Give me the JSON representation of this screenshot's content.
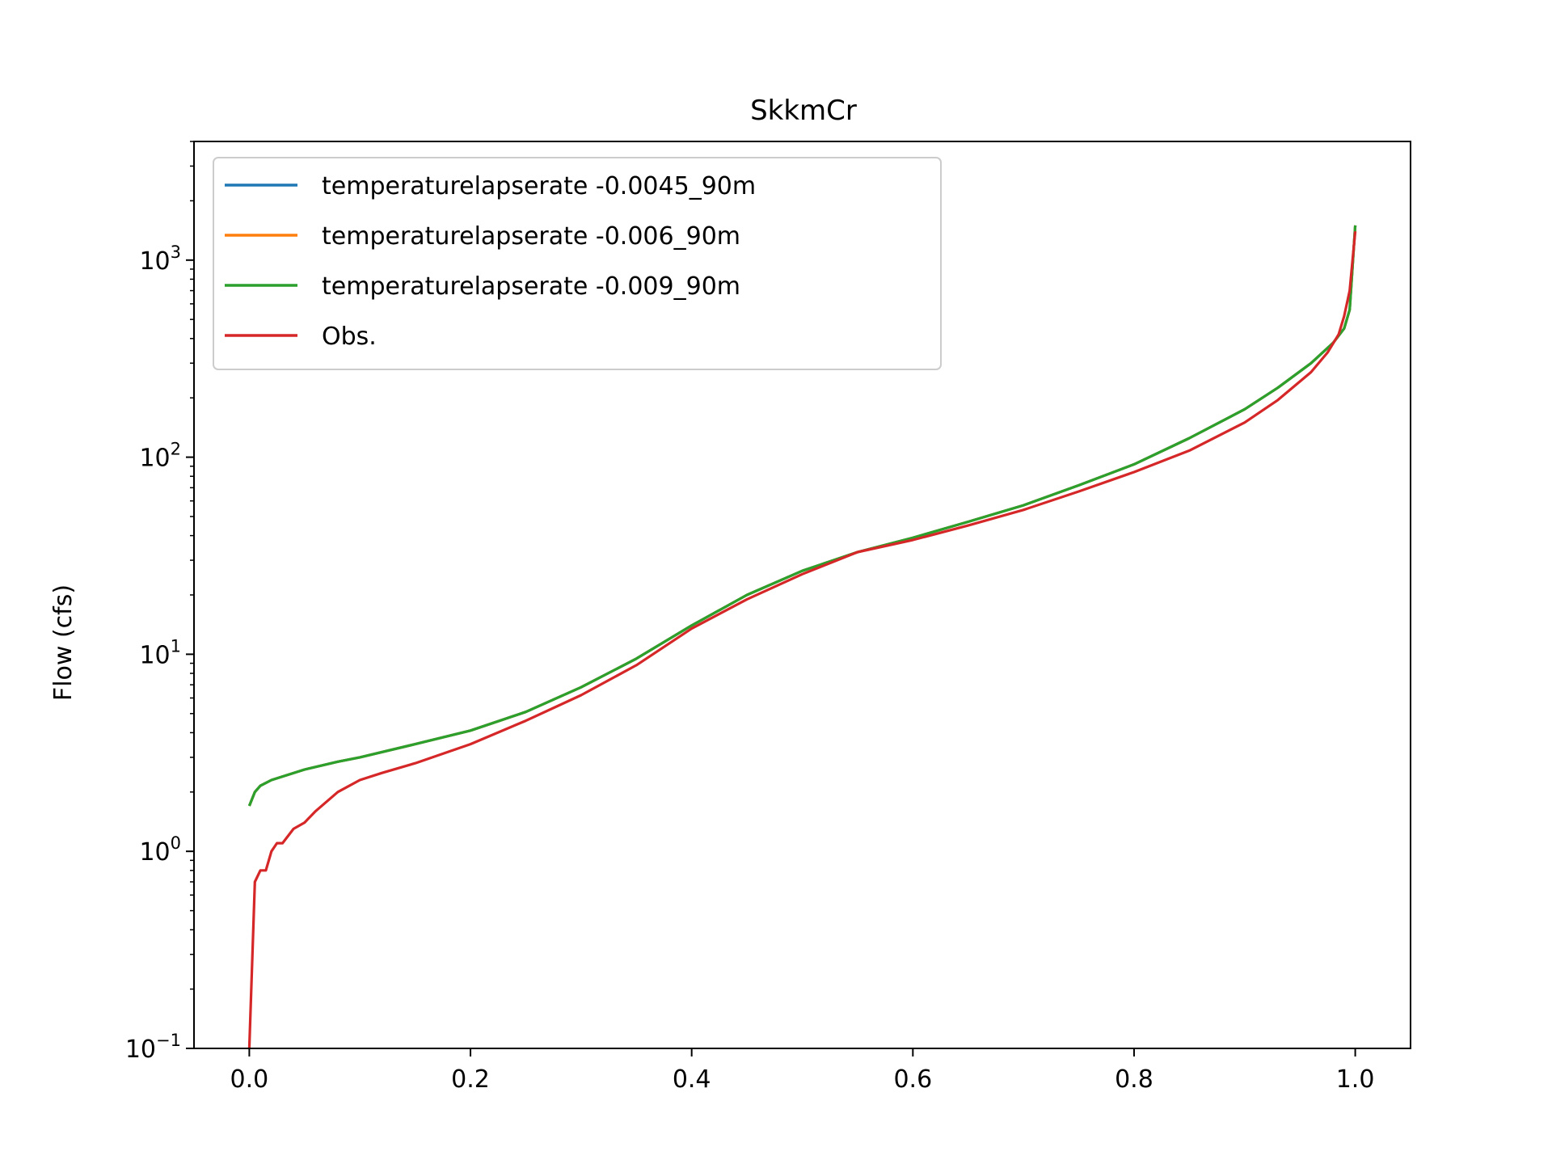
{
  "chart_data": {
    "type": "line",
    "title": "SkkmCr",
    "xlabel": "",
    "ylabel": "Flow (cfs)",
    "yscale": "log",
    "xlim": [
      -0.05,
      1.05
    ],
    "ylim": [
      0.1,
      4000
    ],
    "grid": false,
    "legend_position": "top-left",
    "x_ticks": [
      {
        "value": 0.0,
        "label": "0.0"
      },
      {
        "value": 0.2,
        "label": "0.2"
      },
      {
        "value": 0.4,
        "label": "0.4"
      },
      {
        "value": 0.6,
        "label": "0.6"
      },
      {
        "value": 0.8,
        "label": "0.8"
      },
      {
        "value": 1.0,
        "label": "1.0"
      }
    ],
    "y_ticks": [
      {
        "value": 0.1,
        "base": "10",
        "exp": "−1"
      },
      {
        "value": 1,
        "base": "10",
        "exp": "0"
      },
      {
        "value": 10,
        "base": "10",
        "exp": "1"
      },
      {
        "value": 100,
        "base": "10",
        "exp": "2"
      },
      {
        "value": 1000,
        "base": "10",
        "exp": "3"
      }
    ],
    "series": [
      {
        "name": "temperaturelapserate -0.0045_90m",
        "color": "#1f77b4",
        "x": [
          0.0,
          0.005,
          0.01,
          0.02,
          0.05,
          0.08,
          0.1,
          0.15,
          0.2,
          0.25,
          0.3,
          0.35,
          0.4,
          0.45,
          0.5,
          0.55,
          0.6,
          0.65,
          0.7,
          0.75,
          0.8,
          0.85,
          0.9,
          0.93,
          0.96,
          0.98,
          0.99,
          0.995,
          1.0
        ],
        "y": [
          1.7,
          2.0,
          2.15,
          2.3,
          2.6,
          2.85,
          3.0,
          3.5,
          4.1,
          5.1,
          6.8,
          9.5,
          14.0,
          20.0,
          26.5,
          33.0,
          39.0,
          47.0,
          57.0,
          72.0,
          92.0,
          125.0,
          175.0,
          225.0,
          300.0,
          380.0,
          450.0,
          560.0,
          1500.0
        ]
      },
      {
        "name": "temperaturelapserate -0.006_90m",
        "color": "#ff7f0e",
        "x": [
          0.0,
          0.005,
          0.01,
          0.02,
          0.05,
          0.08,
          0.1,
          0.15,
          0.2,
          0.25,
          0.3,
          0.35,
          0.4,
          0.45,
          0.5,
          0.55,
          0.6,
          0.65,
          0.7,
          0.75,
          0.8,
          0.85,
          0.9,
          0.93,
          0.96,
          0.98,
          0.99,
          0.995,
          1.0
        ],
        "y": [
          1.7,
          2.0,
          2.15,
          2.3,
          2.6,
          2.85,
          3.0,
          3.5,
          4.1,
          5.1,
          6.8,
          9.5,
          14.0,
          20.0,
          26.5,
          33.0,
          39.0,
          47.0,
          57.0,
          72.0,
          92.0,
          125.0,
          175.0,
          225.0,
          300.0,
          380.0,
          450.0,
          560.0,
          1500.0
        ]
      },
      {
        "name": "temperaturelapserate -0.009_90m",
        "color": "#2ca02c",
        "x": [
          0.0,
          0.005,
          0.01,
          0.02,
          0.05,
          0.08,
          0.1,
          0.15,
          0.2,
          0.25,
          0.3,
          0.35,
          0.4,
          0.45,
          0.5,
          0.55,
          0.6,
          0.65,
          0.7,
          0.75,
          0.8,
          0.85,
          0.9,
          0.93,
          0.96,
          0.98,
          0.99,
          0.995,
          1.0
        ],
        "y": [
          1.7,
          2.0,
          2.15,
          2.3,
          2.6,
          2.85,
          3.0,
          3.5,
          4.1,
          5.1,
          6.8,
          9.5,
          14.0,
          20.0,
          26.5,
          33.0,
          39.0,
          47.0,
          57.0,
          72.0,
          92.0,
          125.0,
          175.0,
          225.0,
          300.0,
          380.0,
          450.0,
          560.0,
          1500.0
        ]
      },
      {
        "name": "Obs.",
        "color": "#d62728",
        "x": [
          0.0,
          0.005,
          0.01,
          0.015,
          0.02,
          0.025,
          0.03,
          0.04,
          0.05,
          0.06,
          0.08,
          0.1,
          0.12,
          0.15,
          0.2,
          0.25,
          0.3,
          0.35,
          0.4,
          0.45,
          0.5,
          0.55,
          0.6,
          0.65,
          0.7,
          0.75,
          0.8,
          0.85,
          0.9,
          0.93,
          0.96,
          0.975,
          0.985,
          0.99,
          0.995,
          1.0
        ],
        "y": [
          0.1,
          0.7,
          0.8,
          0.8,
          1.0,
          1.1,
          1.1,
          1.3,
          1.4,
          1.6,
          2.0,
          2.3,
          2.5,
          2.8,
          3.5,
          4.6,
          6.2,
          8.8,
          13.5,
          19.0,
          25.5,
          33.0,
          38.0,
          45.0,
          54.0,
          67.0,
          84.0,
          108.0,
          150.0,
          195.0,
          270.0,
          340.0,
          420.0,
          520.0,
          700.0,
          1400.0
        ]
      }
    ]
  }
}
